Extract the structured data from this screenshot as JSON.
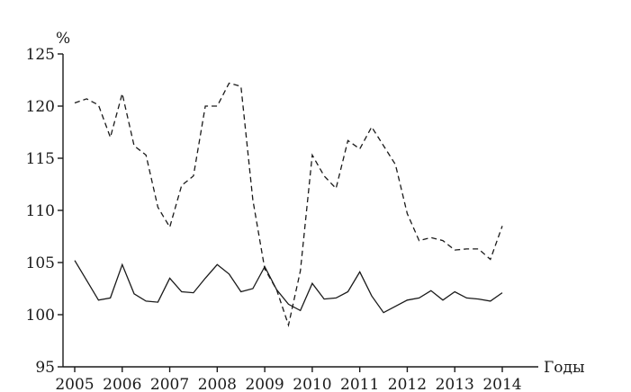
{
  "chart_data": {
    "type": "line",
    "title": "",
    "xlabel": "Годы",
    "ylabel": "%",
    "xlim": [
      2005,
      2014
    ],
    "ylim": [
      95,
      125
    ],
    "x_ticks": [
      "2005",
      "2006",
      "2007",
      "2008",
      "2009",
      "2010",
      "2011",
      "2012",
      "2013",
      "2014"
    ],
    "y_ticks": [
      "95",
      "100",
      "105",
      "110",
      "115",
      "120",
      "125"
    ],
    "grid": false,
    "legend": "none",
    "series": [
      {
        "style": "dashed",
        "points": [
          [
            2005.0,
            120.3
          ],
          [
            2005.25,
            120.7
          ],
          [
            2005.5,
            120.1
          ],
          [
            2005.75,
            117.0
          ],
          [
            2006.0,
            121.2
          ],
          [
            2006.25,
            116.2
          ],
          [
            2006.5,
            115.3
          ],
          [
            2006.75,
            110.3
          ],
          [
            2007.0,
            108.4
          ],
          [
            2007.25,
            112.4
          ],
          [
            2007.5,
            113.3
          ],
          [
            2007.75,
            120.0
          ],
          [
            2008.0,
            120.0
          ],
          [
            2008.25,
            122.2
          ],
          [
            2008.5,
            121.9
          ],
          [
            2008.75,
            111.0
          ],
          [
            2009.0,
            104.4
          ],
          [
            2009.25,
            102.4
          ],
          [
            2009.5,
            99.0
          ],
          [
            2009.75,
            104.2
          ],
          [
            2010.0,
            115.3
          ],
          [
            2010.25,
            113.3
          ],
          [
            2010.5,
            112.1
          ],
          [
            2010.75,
            116.7
          ],
          [
            2011.0,
            115.9
          ],
          [
            2011.25,
            118.0
          ],
          [
            2011.5,
            116.2
          ],
          [
            2011.75,
            114.4
          ],
          [
            2012.0,
            109.7
          ],
          [
            2012.25,
            107.1
          ],
          [
            2012.5,
            107.4
          ],
          [
            2012.75,
            107.1
          ],
          [
            2013.0,
            106.2
          ],
          [
            2013.25,
            106.3
          ],
          [
            2013.5,
            106.3
          ],
          [
            2013.75,
            105.3
          ],
          [
            2014.0,
            108.5
          ]
        ]
      },
      {
        "style": "solid",
        "points": [
          [
            2005.0,
            105.2
          ],
          [
            2005.25,
            103.3
          ],
          [
            2005.5,
            101.4
          ],
          [
            2005.75,
            101.6
          ],
          [
            2006.0,
            104.8
          ],
          [
            2006.25,
            102.0
          ],
          [
            2006.5,
            101.3
          ],
          [
            2006.75,
            101.2
          ],
          [
            2007.0,
            103.5
          ],
          [
            2007.25,
            102.2
          ],
          [
            2007.5,
            102.1
          ],
          [
            2007.75,
            103.5
          ],
          [
            2008.0,
            104.8
          ],
          [
            2008.25,
            103.9
          ],
          [
            2008.5,
            102.2
          ],
          [
            2008.75,
            102.5
          ],
          [
            2009.0,
            104.6
          ],
          [
            2009.25,
            102.4
          ],
          [
            2009.5,
            101.0
          ],
          [
            2009.75,
            100.4
          ],
          [
            2010.0,
            103.0
          ],
          [
            2010.25,
            101.5
          ],
          [
            2010.5,
            101.6
          ],
          [
            2010.75,
            102.2
          ],
          [
            2011.0,
            104.1
          ],
          [
            2011.25,
            101.8
          ],
          [
            2011.5,
            100.2
          ],
          [
            2011.75,
            100.8
          ],
          [
            2012.0,
            101.4
          ],
          [
            2012.25,
            101.6
          ],
          [
            2012.5,
            102.3
          ],
          [
            2012.75,
            101.4
          ],
          [
            2013.0,
            102.2
          ],
          [
            2013.25,
            101.6
          ],
          [
            2013.5,
            101.5
          ],
          [
            2013.75,
            101.3
          ],
          [
            2014.0,
            102.1
          ]
        ]
      }
    ]
  }
}
